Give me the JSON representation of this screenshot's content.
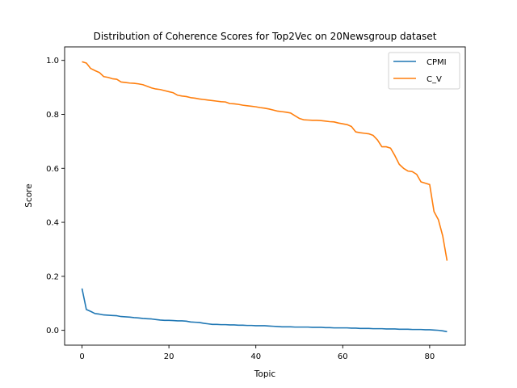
{
  "chart_data": {
    "type": "line",
    "title": "Distribution of Coherence Scores for Top2Vec on 20Newsgroup dataset",
    "xlabel": "Topic",
    "ylabel": "Score",
    "xlim": [
      -4,
      88.2
    ],
    "ylim": [
      -0.055,
      1.05
    ],
    "xticks": [
      0,
      20,
      40,
      60,
      80
    ],
    "yticks": [
      0.0,
      0.2,
      0.4,
      0.6,
      0.8,
      1.0
    ],
    "grid": false,
    "legend_position": "top-right",
    "series": [
      {
        "name": "CPMI",
        "color": "#1f77b4",
        "values": [
          0.155,
          0.077,
          0.07,
          0.062,
          0.06,
          0.057,
          0.056,
          0.055,
          0.054,
          0.051,
          0.05,
          0.049,
          0.047,
          0.046,
          0.044,
          0.043,
          0.042,
          0.04,
          0.038,
          0.037,
          0.037,
          0.036,
          0.035,
          0.035,
          0.034,
          0.031,
          0.03,
          0.029,
          0.026,
          0.024,
          0.022,
          0.022,
          0.021,
          0.021,
          0.02,
          0.02,
          0.019,
          0.019,
          0.018,
          0.018,
          0.017,
          0.017,
          0.017,
          0.016,
          0.015,
          0.014,
          0.013,
          0.013,
          0.013,
          0.012,
          0.012,
          0.012,
          0.012,
          0.011,
          0.011,
          0.011,
          0.01,
          0.01,
          0.009,
          0.009,
          0.009,
          0.009,
          0.008,
          0.008,
          0.007,
          0.007,
          0.007,
          0.006,
          0.006,
          0.006,
          0.005,
          0.005,
          0.005,
          0.004,
          0.004,
          0.004,
          0.003,
          0.003,
          0.003,
          0.002,
          0.002,
          0.001,
          0.0,
          -0.002,
          -0.005
        ]
      },
      {
        "name": "C_V",
        "color": "#ff7f0e",
        "values": [
          0.995,
          0.99,
          0.97,
          0.962,
          0.955,
          0.94,
          0.937,
          0.932,
          0.93,
          0.92,
          0.918,
          0.916,
          0.915,
          0.913,
          0.91,
          0.904,
          0.898,
          0.894,
          0.892,
          0.888,
          0.884,
          0.88,
          0.871,
          0.868,
          0.866,
          0.862,
          0.86,
          0.857,
          0.855,
          0.853,
          0.851,
          0.849,
          0.847,
          0.846,
          0.84,
          0.839,
          0.837,
          0.834,
          0.832,
          0.83,
          0.828,
          0.825,
          0.823,
          0.82,
          0.816,
          0.812,
          0.81,
          0.808,
          0.805,
          0.795,
          0.785,
          0.78,
          0.779,
          0.778,
          0.778,
          0.777,
          0.775,
          0.773,
          0.772,
          0.768,
          0.765,
          0.762,
          0.755,
          0.735,
          0.732,
          0.73,
          0.728,
          0.722,
          0.705,
          0.68,
          0.68,
          0.675,
          0.647,
          0.615,
          0.6,
          0.59,
          0.588,
          0.578,
          0.55,
          0.545,
          0.54,
          0.44,
          0.41,
          0.35,
          0.258
        ]
      }
    ]
  }
}
